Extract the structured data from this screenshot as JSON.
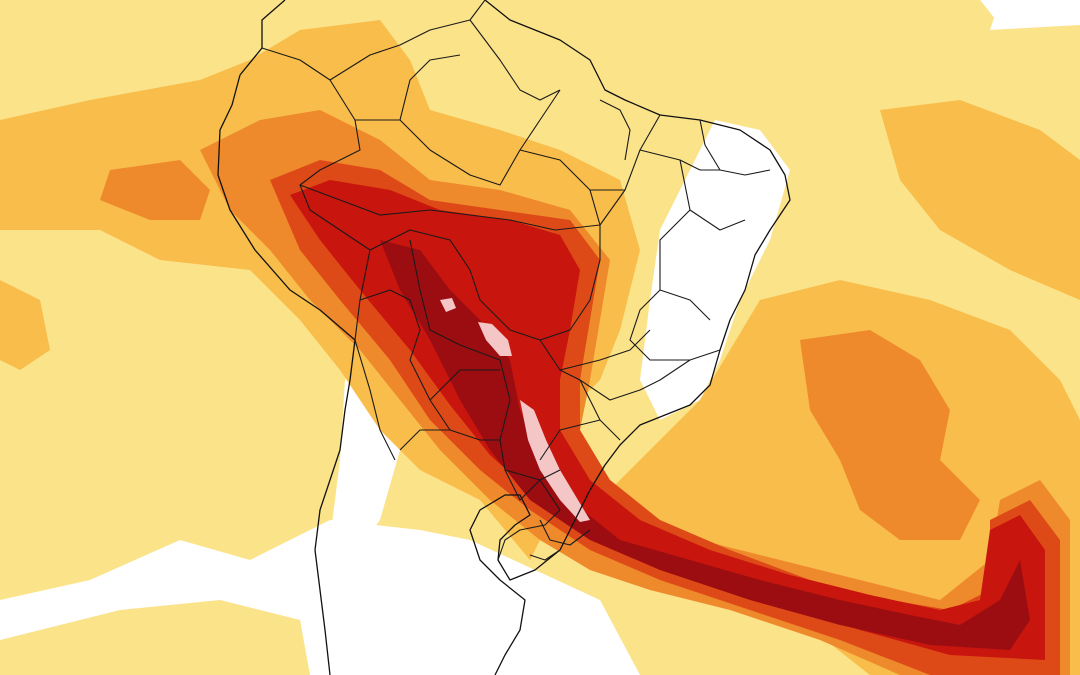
{
  "map": {
    "kind": "weather-model-field",
    "region": "South America",
    "colors": {
      "background": "#ffffff",
      "level_1": "#fbe38a",
      "level_2": "#f8bd4a",
      "level_3": "#ee8a2c",
      "level_4": "#de4a17",
      "level_5": "#c8150d",
      "level_6": "#9c0d12",
      "peak": "#f4c6c6",
      "borders": "#1a1a1a"
    }
  }
}
